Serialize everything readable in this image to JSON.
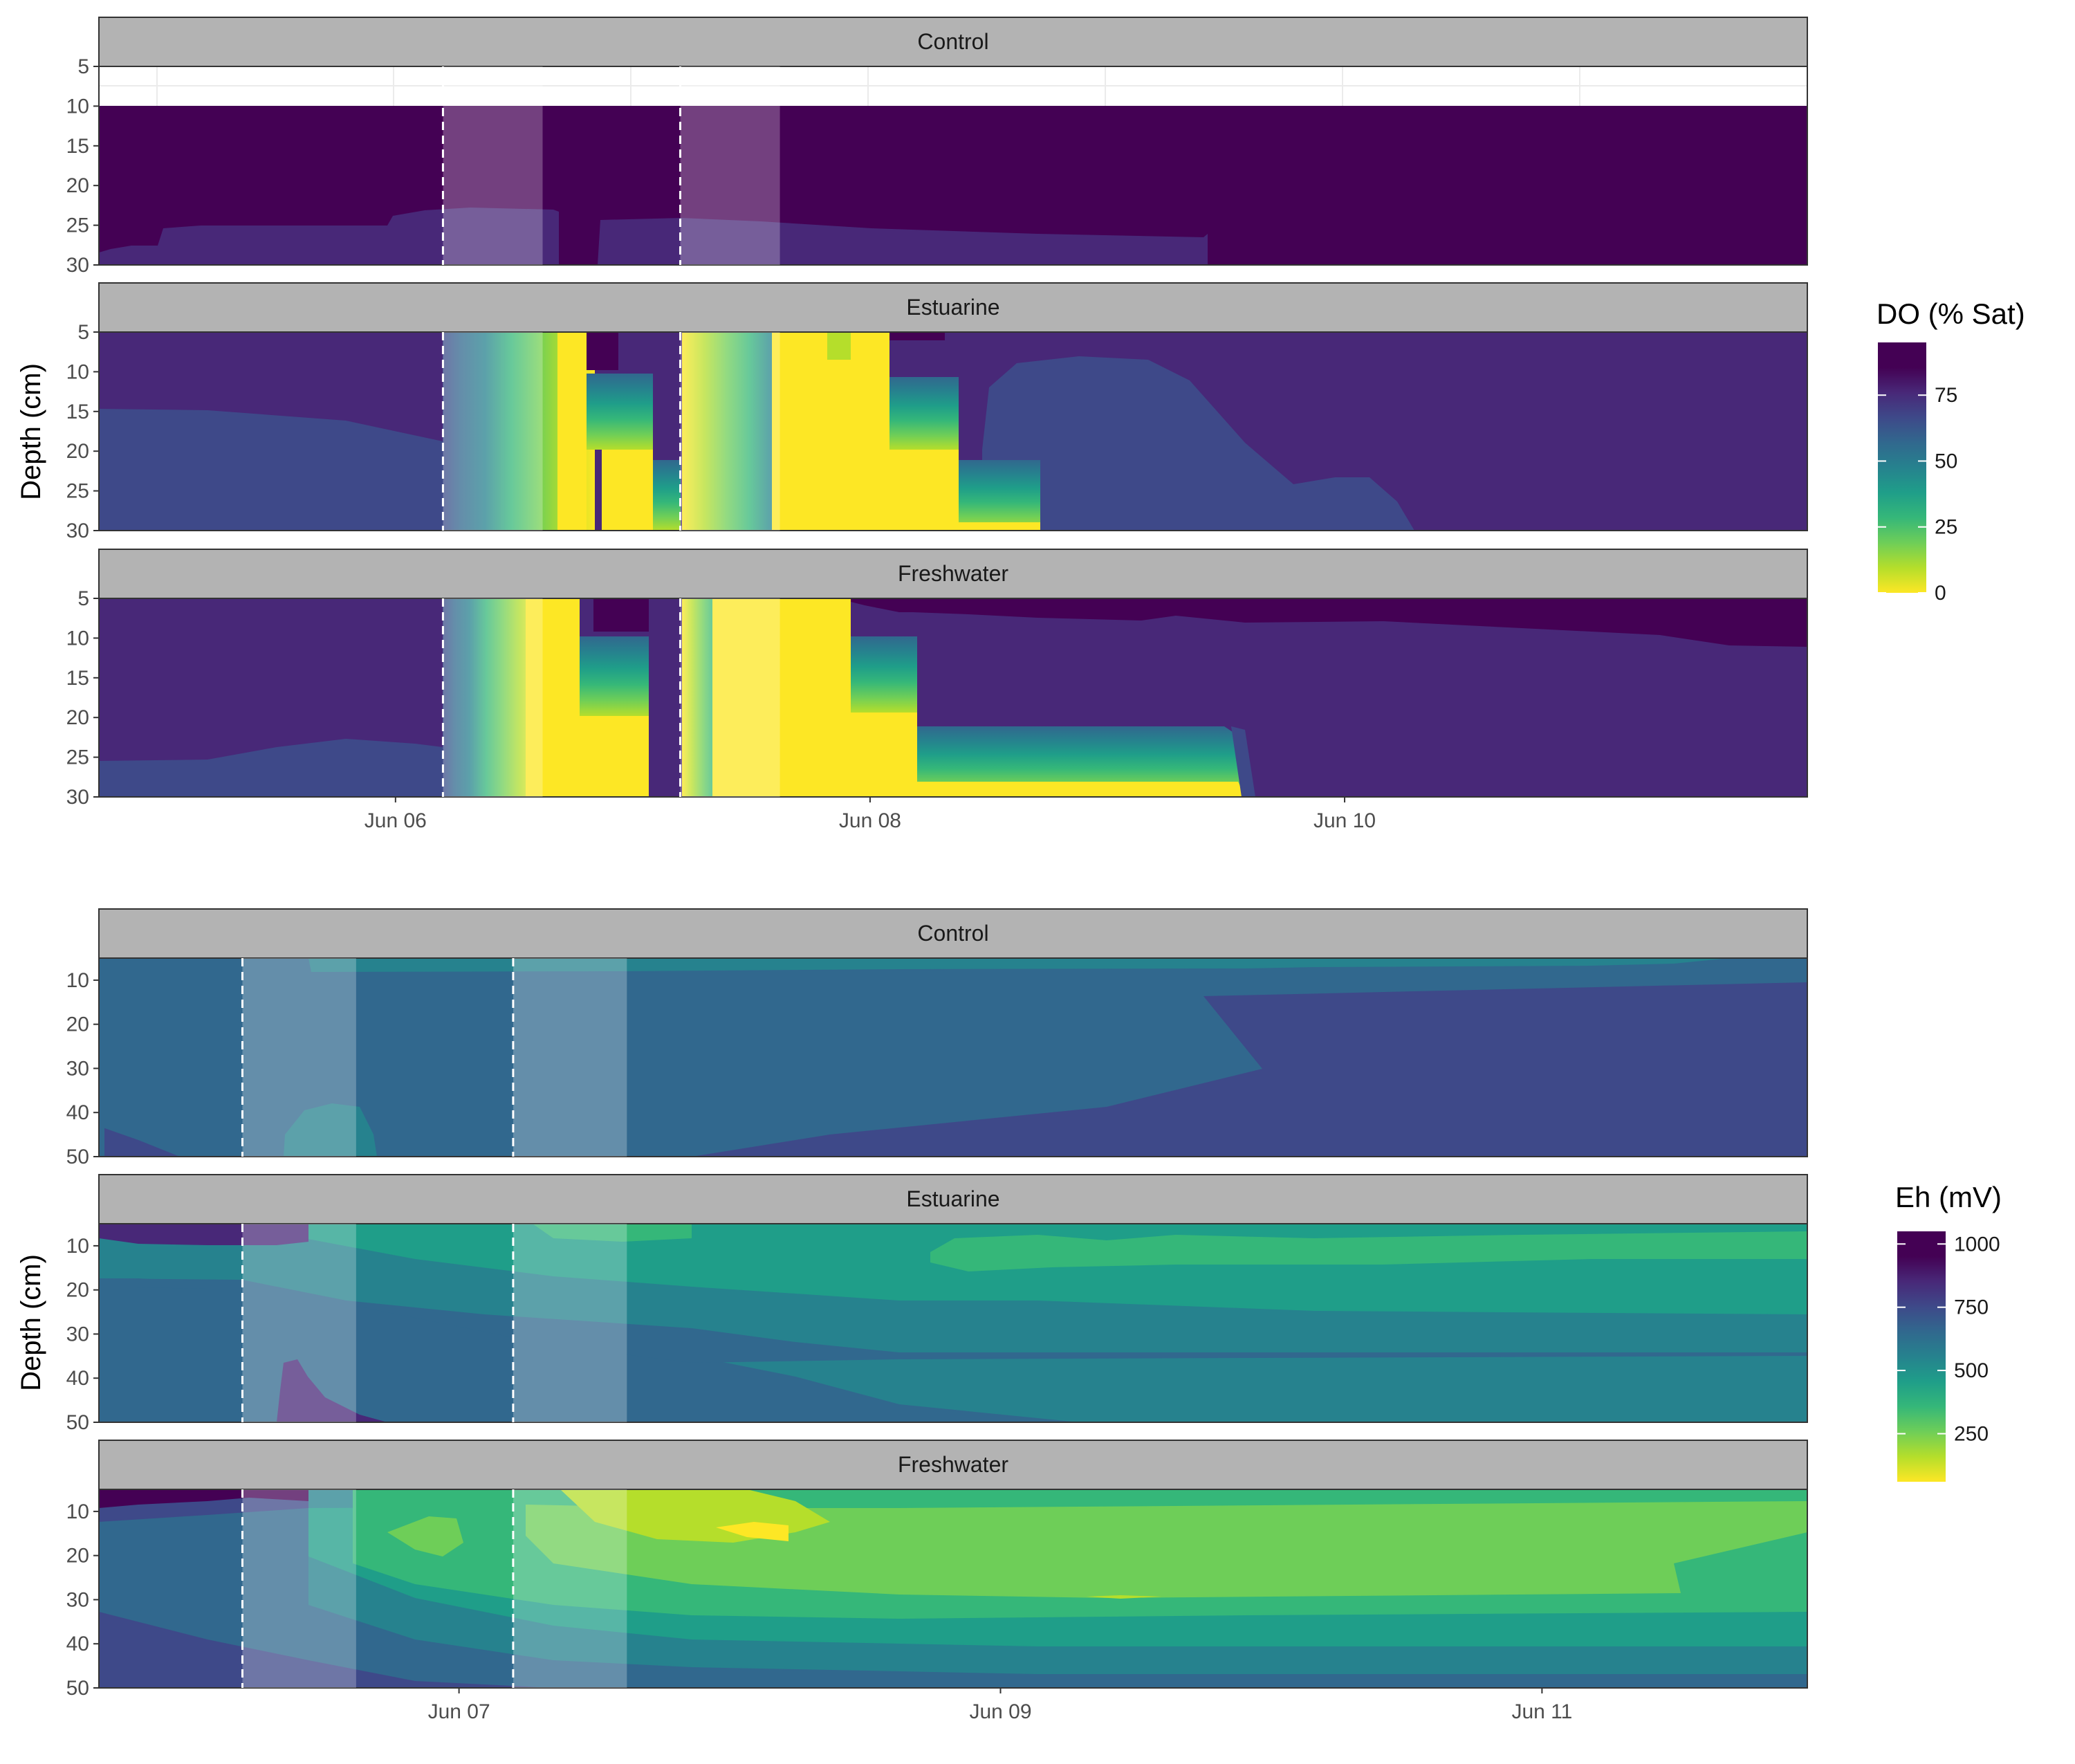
{
  "chart_data": [
    {
      "type": "heatmap",
      "title": "",
      "xlabel": "",
      "ylabel": "Depth (cm)",
      "x_ticks": [
        "Jun 06",
        "Jun 08",
        "Jun 10"
      ],
      "x_tick_days": [
        6,
        8,
        10
      ],
      "xlim_days": [
        4.75,
        11.95
      ],
      "y_ticks": [
        5,
        10,
        15,
        20,
        25,
        30
      ],
      "ylim": [
        5,
        30
      ],
      "y_reversed": true,
      "legend": {
        "title": "DO (% Sat)",
        "ticks": [
          0,
          25,
          50,
          75
        ],
        "range": [
          0,
          95
        ],
        "colormap": "viridis (reversed)",
        "position": "right"
      },
      "event_lines_days": [
        6.2,
        7.2
      ],
      "shaded_periods_days": [
        [
          6.2,
          6.62
        ],
        [
          7.2,
          7.62
        ]
      ],
      "panels": [
        {
          "name": "Control",
          "note_blank_above_depth": 10,
          "bands": [
            {
              "value": 85,
              "depth_profile": [
                [
                  4.75,
                  30
                ],
                [
                  4.8,
                  28
                ],
                [
                  5.0,
                  28
                ],
                [
                  5.05,
                  25.5
                ],
                [
                  5.6,
                  25.5
                ],
                [
                  5.9,
                  25
                ],
                [
                  6.0,
                  24
                ],
                [
                  6.1,
                  23.5
                ],
                [
                  6.5,
                  23
                ],
                [
                  6.75,
                  23.5
                ],
                [
                  6.75,
                  30
                ],
                [
                  6.8,
                  30
                ],
                [
                  6.82,
                  25
                ],
                [
                  7.2,
                  25
                ],
                [
                  7.6,
                  25
                ],
                [
                  8.3,
                  26
                ],
                [
                  9.0,
                  26.5
                ],
                [
                  9.35,
                  26
                ],
                [
                  9.35,
                  30
                ]
              ]
            },
            {
              "value": 95,
              "depth_profile": [
                [
                  4.75,
                  10
                ],
                [
                  11.95,
                  10
                ]
              ]
            }
          ]
        },
        {
          "name": "Estuarine",
          "bands": [
            {
              "value": 80,
              "depth_profile": [
                [
                  4.75,
                  15
                ],
                [
                  5.5,
                  15.5
                ],
                [
                  6.2,
                  19
                ]
              ]
            },
            {
              "value": 95,
              "depth_profile": [
                [
                  4.75,
                  5
                ],
                [
                  11.95,
                  5
                ]
              ]
            },
            {
              "value": 65,
              "depth_profile": [
                [
                  6.2,
                  5
                ],
                [
                  6.45,
                  5
                ]
              ]
            },
            {
              "value": 25,
              "depth_profile": [
                [
                  6.55,
                  5
                ],
                [
                  6.75,
                  30
                ]
              ]
            },
            {
              "value": 0,
              "depth_profile": [
                [
                  6.6,
                  5
                ],
                [
                  6.75,
                  5
                ],
                [
                  6.75,
                  19
                ],
                [
                  6.87,
                  30
                ]
              ]
            },
            {
              "value": 0,
              "depth_profile": [
                [
                  7.3,
                  5
                ],
                [
                  8.0,
                  5
                ],
                [
                  8.0,
                  20
                ],
                [
                  8.4,
                  30
                ]
              ]
            },
            {
              "value": 50,
              "depth_profile": [
                [
                  8.4,
                  16
                ],
                [
                  8.7,
                  16
                ],
                [
                  8.7,
                  30
                ]
              ]
            },
            {
              "value": 80,
              "depth_profile": [
                [
                  8.55,
                  10
                ],
                [
                  8.9,
                  8.5
                ],
                [
                  9.5,
                  11
                ],
                [
                  10.0,
                  21
                ],
                [
                  10.3,
                  25
                ],
                [
                  10.6,
                  30
                ]
              ]
            }
          ]
        },
        {
          "name": "Freshwater",
          "bands": [
            {
              "value": 80,
              "depth_profile": [
                [
                  4.75,
                  25
                ],
                [
                  5.5,
                  24
                ],
                [
                  5.9,
                  23
                ],
                [
                  6.2,
                  24
                ]
              ]
            },
            {
              "value": 95,
              "depth_profile": [
                [
                  4.75,
                  5
                ],
                [
                  11.95,
                  5
                ]
              ]
            },
            {
              "value": 0,
              "depth_profile": [
                [
                  6.6,
                  5
                ],
                [
                  6.75,
                  5
                ],
                [
                  6.75,
                  18
                ],
                [
                  6.85,
                  18
                ],
                [
                  6.85,
                  30
                ]
              ]
            },
            {
              "value": 0,
              "depth_profile": [
                [
                  7.35,
                  5
                ],
                [
                  7.8,
                  5
                ],
                [
                  7.8,
                  18
                ],
                [
                  8.2,
                  18
                ],
                [
                  8.2,
                  30
                ]
              ]
            },
            {
              "value": 15,
              "depth_profile": [
                [
                  8.2,
                  21
                ],
                [
                  9.4,
                  21
                ],
                [
                  9.5,
                  30
                ]
              ]
            },
            {
              "value": 95,
              "depth_profile": [
                [
                  8.0,
                  5
                ],
                [
                  8.2,
                  7
                ],
                [
                  9.5,
                  7.5
                ],
                [
                  10.5,
                  7
                ],
                [
                  11.3,
                  9
                ],
                [
                  11.95,
                  11
                ]
              ]
            }
          ]
        }
      ]
    },
    {
      "type": "heatmap",
      "title": "",
      "xlabel": "",
      "ylabel": "Depth (cm)",
      "x_ticks": [
        "Jun 07",
        "Jun 09",
        "Jun 11"
      ],
      "x_tick_days": [
        7,
        9,
        11
      ],
      "xlim_days": [
        5.67,
        11.98
      ],
      "y_ticks": [
        10,
        20,
        30,
        40,
        50
      ],
      "ylim": [
        5,
        50
      ],
      "y_reversed": true,
      "legend": {
        "title": "Eh (mV)",
        "ticks": [
          250,
          500,
          750,
          1000
        ],
        "range": [
          60,
          1050
        ],
        "colormap": "viridis (reversed)",
        "position": "right"
      },
      "event_lines_days": [
        6.2,
        7.2
      ],
      "shaded_periods_days": [
        [
          6.2,
          6.62
        ],
        [
          7.2,
          7.62
        ]
      ],
      "panels": [
        {
          "name": "Control",
          "bands": [
            {
              "value": 700,
              "depth_profile": [
                [
                  5.67,
                  5
                ],
                [
                  11.98,
                  5
                ],
                [
                  11.98,
                  50
                ],
                [
                  5.67,
                  50
                ]
              ]
            },
            {
              "value": 560,
              "depth_profile": [
                [
                  6.37,
                  5
                ],
                [
                  7.6,
                  5
                ],
                [
                  9.0,
                  6
                ],
                [
                  10.5,
                  6
                ],
                [
                  11.5,
                  5
                ]
              ]
            },
            {
              "value": 800,
              "depth_profile": [
                [
                  9.0,
                  8
                ],
                [
                  9.3,
                  30
                ],
                [
                  7.5,
                  50
                ],
                [
                  11.98,
                  50
                ],
                [
                  11.98,
                  14
                ]
              ]
            },
            {
              "value": 480,
              "depth_profile": [
                [
                  6.35,
                  50
                ],
                [
                  6.45,
                  38
                ],
                [
                  6.6,
                  37
                ],
                [
                  6.7,
                  50
                ]
              ]
            }
          ]
        },
        {
          "name": "Estuarine",
          "bands": [
            {
              "value": 700,
              "depth_profile": [
                [
                  5.67,
                  5
                ],
                [
                  11.98,
                  5
                ],
                [
                  11.98,
                  50
                ],
                [
                  5.67,
                  50
                ]
              ]
            },
            {
              "value": 540,
              "depth_profile": [
                [
                  6.2,
                  5
                ],
                [
                  7.6,
                  5
                ],
                [
                  11.98,
                  10
                ],
                [
                  11.98,
                  30
                ],
                [
                  8.0,
                  26
                ],
                [
                  6.2,
                  18
                ]
              ]
            },
            {
              "value": 380,
              "depth_profile": [
                [
                  8.7,
                  11
                ],
                [
                  9.2,
                  10
                ],
                [
                  10.0,
                  12
                ],
                [
                  11.98,
                  10
                ],
                [
                  11.98,
                  15
                ],
                [
                  9.0,
                  17
                ]
              ]
            },
            {
              "value": 880,
              "depth_profile": [
                [
                  5.67,
                  5
                ],
                [
                  6.2,
                  5
                ],
                [
                  6.2,
                  10
                ],
                [
                  5.67,
                  10
                ]
              ]
            }
          ]
        },
        {
          "name": "Freshwater",
          "bands": [
            {
              "value": 760,
              "depth_profile": [
                [
                  5.67,
                  5
                ],
                [
                  11.98,
                  5
                ],
                [
                  11.98,
                  50
                ],
                [
                  5.67,
                  50
                ]
              ]
            },
            {
              "value": 520,
              "depth_profile": [
                [
                  6.2,
                  10
                ],
                [
                  11.98,
                  10
                ],
                [
                  11.98,
                  46
                ],
                [
                  8.0,
                  42
                ],
                [
                  6.2,
                  32
                ]
              ]
            },
            {
              "value": 330,
              "depth_profile": [
                [
                  7.3,
                  5
                ],
                [
                  11.5,
                  9
                ],
                [
                  11.98,
                  10
                ],
                [
                  11.98,
                  36
                ],
                [
                  8.0,
                  31
                ]
              ]
            },
            {
              "value": 220,
              "depth_profile": [
                [
                  7.65,
                  7
                ],
                [
                  8.5,
                  10
                ],
                [
                  11.4,
                  12
                ],
                [
                  11.4,
                  30
                ],
                [
                  8.0,
                  29
                ]
              ]
            },
            {
              "value": 80,
              "depth_profile": [
                [
                  7.95,
                  14
                ],
                [
                  8.3,
                  14
                ],
                [
                  8.3,
                  19
                ],
                [
                  7.95,
                  17
                ]
              ]
            },
            {
              "value": 960,
              "depth_profile": [
                [
                  5.67,
                  5
                ],
                [
                  6.2,
                  5
                ],
                [
                  6.2,
                  10
                ],
                [
                  5.67,
                  10
                ]
              ]
            }
          ]
        }
      ]
    }
  ]
}
